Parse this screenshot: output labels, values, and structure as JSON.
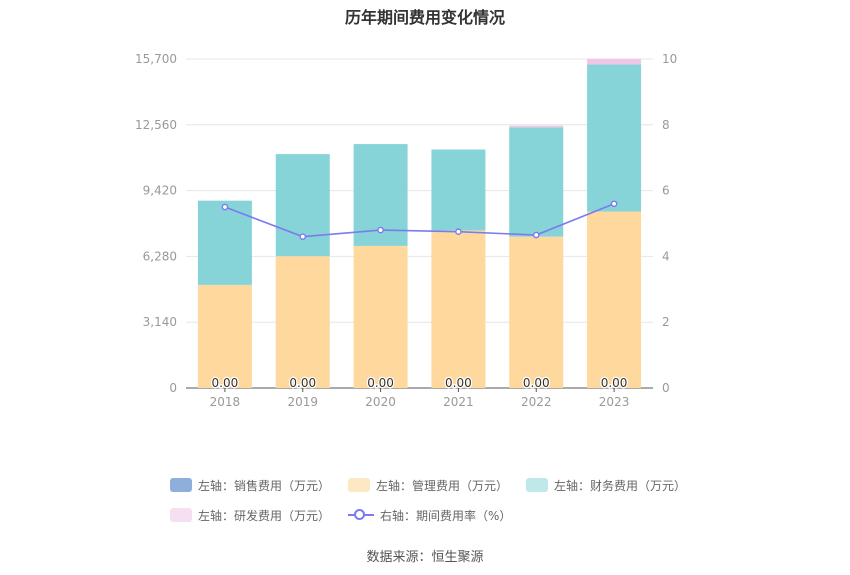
{
  "page": {
    "title": "历年期间费用变化情况",
    "source": "数据来源：恒生聚源"
  },
  "colors": {
    "sales": "#8eaedb",
    "mgmt": "#fed89c",
    "finance": "#87d4d8",
    "rd": "#f0c6e6",
    "rate": "#7b7bef",
    "axis": "#999999",
    "grid": "#e6e6e6"
  },
  "chart_data": {
    "type": "bar",
    "categories": [
      "2018",
      "2019",
      "2020",
      "2021",
      "2022",
      "2023"
    ],
    "stacked": true,
    "series": [
      {
        "name": "左轴：销售费用（万元）",
        "axis": "left",
        "values": [
          0,
          0,
          0,
          0,
          0,
          0
        ]
      },
      {
        "name": "左轴：管理费用（万元）",
        "axis": "left",
        "values": [
          4920,
          6290,
          6780,
          7520,
          7220,
          8420
        ]
      },
      {
        "name": "左轴：财务费用（万元）",
        "axis": "left",
        "values": [
          4020,
          4870,
          4860,
          3860,
          5220,
          7020
        ]
      },
      {
        "name": "左轴：研发费用（万元）",
        "axis": "left",
        "values": [
          0,
          0,
          0,
          0,
          80,
          260
        ]
      },
      {
        "name": "右轴：期间费用率（%）",
        "axis": "right",
        "type": "line",
        "values": [
          5.5,
          4.6,
          4.8,
          4.75,
          4.65,
          5.6
        ]
      }
    ],
    "bar_labels": [
      "0.00",
      "0.00",
      "0.00",
      "0.00",
      "0.00",
      "0.00"
    ],
    "y_left": {
      "range": [
        0,
        15700
      ],
      "ticks": [
        "0",
        "3,140",
        "6,280",
        "9,420",
        "12,560",
        "15,700"
      ]
    },
    "y_right": {
      "range": [
        0,
        10
      ],
      "ticks": [
        "0",
        "2",
        "4",
        "6",
        "8",
        "10"
      ]
    },
    "grid": true,
    "legend_position": "bottom"
  }
}
